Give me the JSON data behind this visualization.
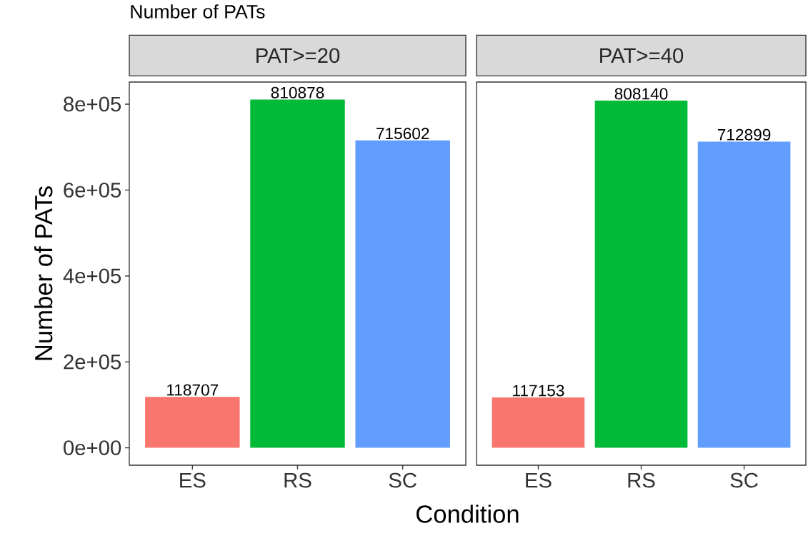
{
  "chart_data": [
    {
      "type": "bar",
      "title": "Number of PATs",
      "subtitle": "PAT>=20",
      "xlabel": "Condition",
      "ylabel": "Number of PATs",
      "categories": [
        "ES",
        "RS",
        "SC"
      ],
      "values": [
        118707,
        810878,
        715602
      ],
      "colors": [
        "#f8766d",
        "#00ba38",
        "#619cff"
      ],
      "ylim": [
        -40544,
        851422
      ],
      "yticks": [
        {
          "value": 0,
          "label": "0e+00"
        },
        {
          "value": 200000,
          "label": "2e+05"
        },
        {
          "value": 400000,
          "label": "4e+05"
        },
        {
          "value": 600000,
          "label": "6e+05"
        },
        {
          "value": 800000,
          "label": "8e+05"
        }
      ],
      "data_labels": true,
      "grid": false
    },
    {
      "type": "bar",
      "subtitle": "PAT>=40",
      "categories": [
        "ES",
        "RS",
        "SC"
      ],
      "values": [
        117153,
        808140,
        712899
      ],
      "colors": [
        "#f8766d",
        "#00ba38",
        "#619cff"
      ],
      "ylim": [
        -40544,
        851422
      ],
      "tick_labels": "x",
      "data_labels": true,
      "grid": false
    }
  ]
}
